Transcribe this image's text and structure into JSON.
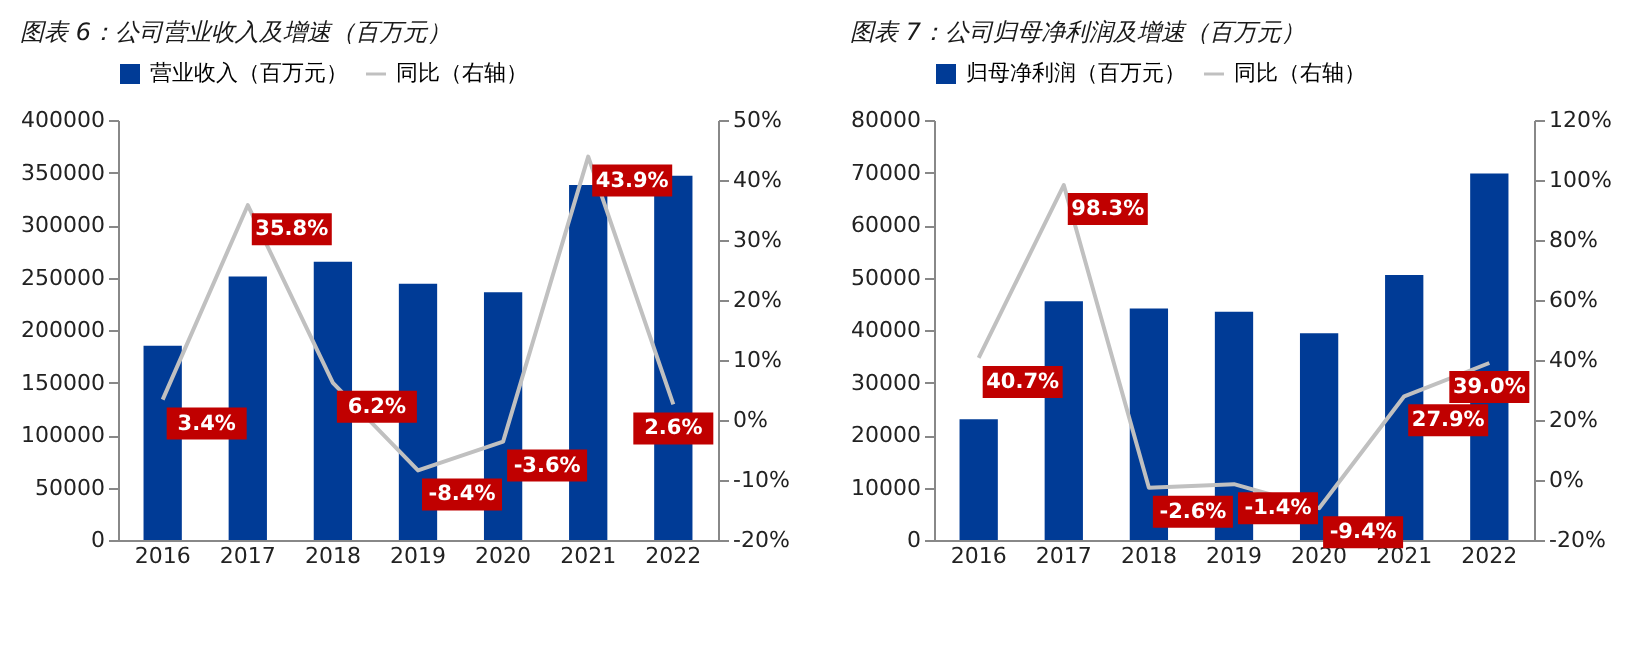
{
  "chart_data": [
    {
      "type": "bar",
      "title": "图表 6：公司营业收入及增速（百万元）",
      "categories": [
        "2016",
        "2017",
        "2018",
        "2019",
        "2020",
        "2021",
        "2022"
      ],
      "series": [
        {
          "name": "营业收入（百万元）",
          "color": "#003b96",
          "values": [
            185000,
            251000,
            265000,
            244000,
            236000,
            338000,
            347000
          ]
        },
        {
          "name": "同比（右轴）",
          "type": "line",
          "axis": "y2",
          "color": "#c0c0c0",
          "values": [
            3.4,
            35.8,
            6.2,
            -8.4,
            -3.6,
            43.9,
            2.6
          ],
          "value_labels": [
            "3.4%",
            "35.8%",
            "6.2%",
            "-8.4%",
            "-3.6%",
            "43.9%",
            "2.6%"
          ]
        }
      ],
      "ylim": [
        0,
        400000
      ],
      "yticks": [
        0,
        50000,
        100000,
        150000,
        200000,
        250000,
        300000,
        350000,
        400000
      ],
      "y2lim": [
        -20,
        50
      ],
      "y2ticks": [
        {
          "value": -20,
          "label": "-20%"
        },
        {
          "value": -10,
          "label": "-10%"
        },
        {
          "value": 0,
          "label": "0%"
        },
        {
          "value": 10,
          "label": "10%"
        },
        {
          "value": 20,
          "label": "20%"
        },
        {
          "value": 30,
          "label": "30%"
        },
        {
          "value": 40,
          "label": "40%"
        },
        {
          "value": 50,
          "label": "50%"
        }
      ],
      "legend": "top",
      "marker": "none"
    },
    {
      "type": "bar",
      "title": "图表 7：公司归母净利润及增速（百万元）",
      "categories": [
        "2016",
        "2017",
        "2018",
        "2019",
        "2020",
        "2021",
        "2022"
      ],
      "series": [
        {
          "name": "归母净利润（百万元）",
          "color": "#003b96",
          "values": [
            23000,
            45500,
            44100,
            43500,
            39400,
            50500,
            69800
          ]
        },
        {
          "name": "同比（右轴）",
          "type": "line",
          "axis": "y2",
          "color": "#c0c0c0",
          "values": [
            40.7,
            98.3,
            -2.6,
            -1.4,
            -9.4,
            27.9,
            39.0
          ],
          "value_labels": [
            "40.7%",
            "98.3%",
            "-2.6%",
            "-1.4%",
            "-9.4%",
            "27.9%",
            "39.0%"
          ]
        }
      ],
      "ylim": [
        0,
        80000
      ],
      "yticks": [
        0,
        10000,
        20000,
        30000,
        40000,
        50000,
        60000,
        70000,
        80000
      ],
      "y2lim": [
        -20,
        120
      ],
      "y2ticks": [
        {
          "value": -20,
          "label": "-20%"
        },
        {
          "value": 0,
          "label": "0%"
        },
        {
          "value": 20,
          "label": "20%"
        },
        {
          "value": 40,
          "label": "40%"
        },
        {
          "value": 60,
          "label": "60%"
        },
        {
          "value": 80,
          "label": "80%"
        },
        {
          "value": 100,
          "label": "100%"
        },
        {
          "value": 120,
          "label": "120%"
        }
      ],
      "legend": "top",
      "marker": "none"
    }
  ]
}
